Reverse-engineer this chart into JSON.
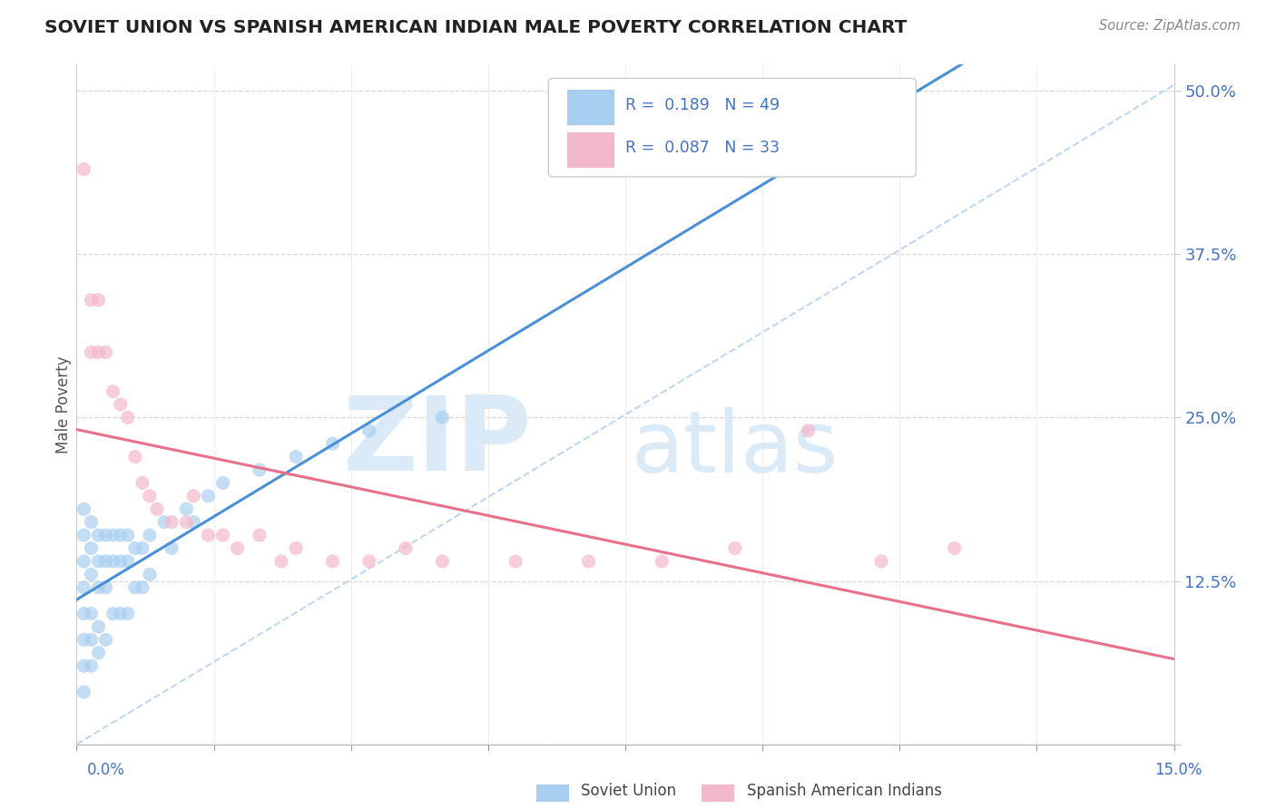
{
  "title": "SOVIET UNION VS SPANISH AMERICAN INDIAN MALE POVERTY CORRELATION CHART",
  "source": "Source: ZipAtlas.com",
  "ylabel": "Male Poverty",
  "xlim": [
    0.0,
    0.15
  ],
  "ylim": [
    0.0,
    0.52
  ],
  "yticks": [
    0.0,
    0.125,
    0.25,
    0.375,
    0.5
  ],
  "ytick_labels": [
    "",
    "12.5%",
    "25.0%",
    "37.5%",
    "50.0%"
  ],
  "color_blue_scatter": "#a8cff0",
  "color_pink_scatter": "#f4b8cb",
  "color_blue_line": "#4a90d9",
  "color_pink_line": "#e8708a",
  "color_ref_line": "#b8d4f0",
  "color_axis_text": "#4472c4",
  "legend_r1": "R =  0.189   N = 49",
  "legend_r2": "R =  0.087   N = 33",
  "bottom_soviet": "Soviet Union",
  "bottom_spanish": "Spanish American Indians",
  "watermark_zip": "ZIP",
  "watermark_atlas": "atlas",
  "su_x": [
    0.001,
    0.001,
    0.001,
    0.001,
    0.001,
    0.001,
    0.001,
    0.001,
    0.002,
    0.002,
    0.002,
    0.002,
    0.002,
    0.002,
    0.003,
    0.003,
    0.003,
    0.003,
    0.003,
    0.004,
    0.004,
    0.004,
    0.004,
    0.005,
    0.005,
    0.005,
    0.006,
    0.006,
    0.006,
    0.007,
    0.007,
    0.007,
    0.008,
    0.008,
    0.009,
    0.009,
    0.01,
    0.01,
    0.012,
    0.013,
    0.015,
    0.016,
    0.018,
    0.02,
    0.025,
    0.03,
    0.035,
    0.04,
    0.05
  ],
  "su_y": [
    0.18,
    0.16,
    0.14,
    0.12,
    0.1,
    0.08,
    0.06,
    0.04,
    0.17,
    0.15,
    0.13,
    0.1,
    0.08,
    0.06,
    0.16,
    0.14,
    0.12,
    0.09,
    0.07,
    0.16,
    0.14,
    0.12,
    0.08,
    0.16,
    0.14,
    0.1,
    0.16,
    0.14,
    0.1,
    0.16,
    0.14,
    0.1,
    0.15,
    0.12,
    0.15,
    0.12,
    0.16,
    0.13,
    0.17,
    0.15,
    0.18,
    0.17,
    0.19,
    0.2,
    0.21,
    0.22,
    0.23,
    0.24,
    0.25
  ],
  "sai_x": [
    0.001,
    0.002,
    0.002,
    0.003,
    0.003,
    0.004,
    0.005,
    0.006,
    0.007,
    0.008,
    0.009,
    0.01,
    0.011,
    0.013,
    0.015,
    0.016,
    0.018,
    0.02,
    0.022,
    0.025,
    0.028,
    0.03,
    0.035,
    0.04,
    0.045,
    0.05,
    0.06,
    0.07,
    0.08,
    0.09,
    0.1,
    0.11,
    0.12
  ],
  "sai_y": [
    0.44,
    0.34,
    0.3,
    0.34,
    0.3,
    0.3,
    0.27,
    0.26,
    0.25,
    0.22,
    0.2,
    0.19,
    0.18,
    0.17,
    0.17,
    0.19,
    0.16,
    0.16,
    0.15,
    0.16,
    0.14,
    0.15,
    0.14,
    0.14,
    0.15,
    0.14,
    0.14,
    0.14,
    0.14,
    0.15,
    0.24,
    0.14,
    0.15
  ]
}
